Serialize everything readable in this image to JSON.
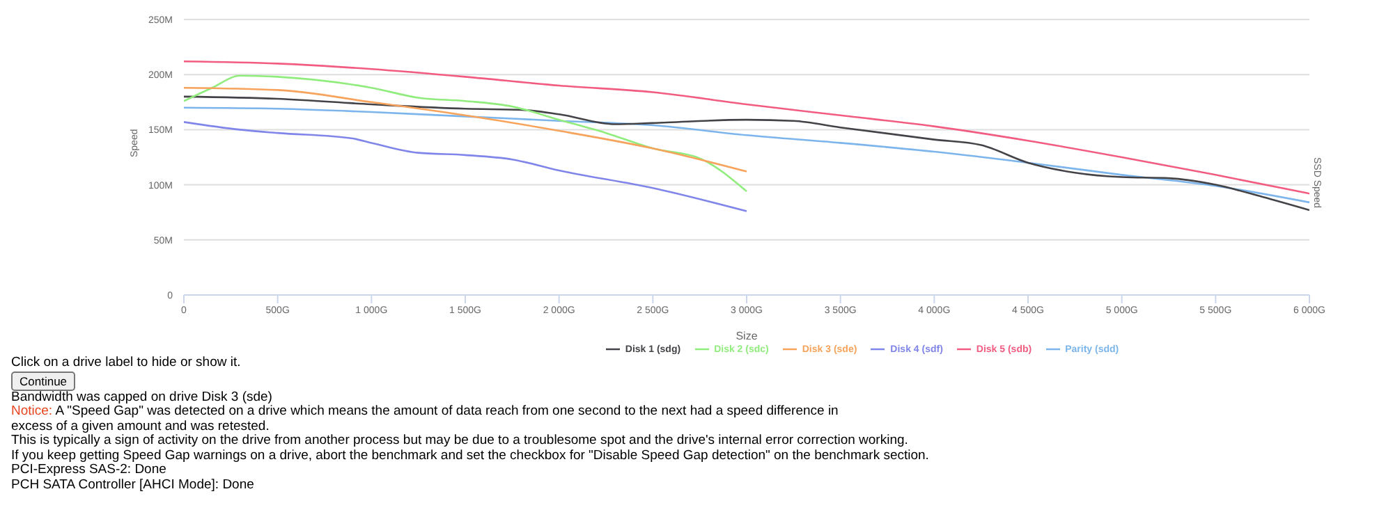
{
  "chart_data": {
    "type": "line",
    "xlabel": "Size",
    "ylabel": "Speed",
    "y2label": "SSD Speed",
    "xlim": [
      0,
      6000
    ],
    "xticks": [
      0,
      {
        "value": 500,
        "label": "500G"
      },
      {
        "value": 1000,
        "label": "1 000G"
      },
      {
        "value": 1500,
        "label": "1 500G"
      },
      {
        "value": 2000,
        "label": "2 000G"
      },
      {
        "value": 2500,
        "label": "2 500G"
      },
      {
        "value": 3000,
        "label": "3 000G"
      },
      {
        "value": 3500,
        "label": "3 500G"
      },
      {
        "value": 4000,
        "label": "4 000G"
      },
      {
        "value": 4500,
        "label": "4 500G"
      },
      {
        "value": 5000,
        "label": "5 000G"
      },
      {
        "value": 5500,
        "label": "5 500G"
      },
      {
        "value": 6000,
        "label": "6 000G"
      }
    ],
    "ylim": [
      0,
      250
    ],
    "yticks": [
      0,
      {
        "value": 50,
        "label": "50M"
      },
      {
        "value": 100,
        "label": "100M"
      },
      {
        "value": 150,
        "label": "150M"
      },
      {
        "value": 200,
        "label": "200M"
      },
      {
        "value": 250,
        "label": "250M"
      }
    ],
    "grid": "y",
    "legend": "bottom",
    "marker": "none",
    "line_style": "solid",
    "series": [
      {
        "name": "Parity (sdd)",
        "color": "#7cb5ec",
        "x": [
          0,
          500,
          1000,
          1500,
          2000,
          2500,
          3000,
          3500,
          4000,
          4500,
          5000,
          5500,
          6000
        ],
        "values": [
          170,
          169,
          166,
          162,
          158,
          154,
          145,
          138,
          130,
          120,
          109,
          99,
          84
        ]
      },
      {
        "name": "Disk 1 (sdg)",
        "color": "#434348",
        "x": [
          0,
          500,
          1000,
          1500,
          1800,
          2000,
          2300,
          2500,
          3000,
          3250,
          3500,
          4000,
          4250,
          4500,
          4750,
          5000,
          5250,
          5500,
          5750,
          6000
        ],
        "values": [
          180,
          178,
          173,
          169,
          168,
          164,
          155,
          156,
          159,
          158,
          152,
          141,
          136,
          120,
          111,
          107,
          106,
          100,
          89,
          77
        ]
      },
      {
        "name": "Disk 2 (sdc)",
        "color": "#90ed7d",
        "x": [
          0,
          150,
          300,
          500,
          1000,
          1250,
          1500,
          1750,
          2000,
          2250,
          2500,
          2750,
          3000
        ],
        "values": [
          176,
          188,
          199,
          198,
          188,
          179,
          176,
          171,
          159,
          147,
          133,
          124,
          94
        ]
      },
      {
        "name": "Disk 3 (sde)",
        "color": "#f7a35c",
        "x": [
          0,
          500,
          1000,
          1500,
          2000,
          2500,
          3000
        ],
        "values": [
          188,
          186,
          175,
          163,
          149,
          133,
          112
        ]
      },
      {
        "name": "Disk 4 (sdf)",
        "color": "#8085e9",
        "x": [
          0,
          300,
          500,
          900,
          1000,
          1250,
          1500,
          1750,
          2000,
          2500,
          3000
        ],
        "values": [
          157,
          150,
          147,
          142,
          138,
          129,
          127,
          123,
          113,
          97,
          76
        ]
      },
      {
        "name": "Disk 5 (sdb)",
        "color": "#f15c80",
        "x": [
          0,
          500,
          1000,
          1500,
          2000,
          2500,
          3000,
          3500,
          4000,
          4500,
          5000,
          5500,
          6000
        ],
        "values": [
          212,
          210,
          205,
          198,
          190,
          184,
          173,
          163,
          153,
          140,
          125,
          109,
          92
        ]
      }
    ],
    "annotations": [
      "Click on a drive label to hide or show it.",
      "Continue",
      "Bandwidth was capped on drive Disk 3 (sde)",
      "Notice: A \"Speed Gap\" was detected on a drive which means the amount of data reach from one second to the next had a speed difference in excess of a given amount and was retested.",
      "This is typically a sign of activity on the drive from another process but may be due to a troublesome spot and the drive's internal error correction working.",
      "If you keep getting Speed Gap warnings on a drive, abort the benchmark and set the checkbox for \"Disable Speed Gap detection\" on the benchmark section.",
      "PCI-Express SAS-2: Done",
      "PCH SATA Controller [AHCI Mode]: Done"
    ]
  }
}
